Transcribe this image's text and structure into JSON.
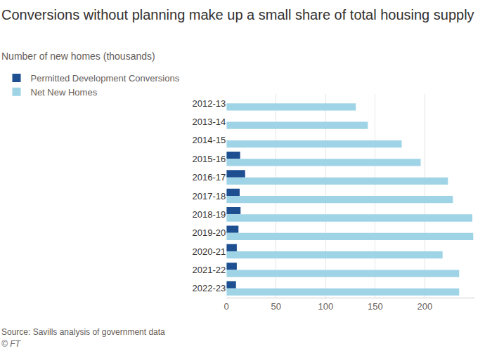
{
  "chart_data": {
    "type": "bar",
    "orientation": "horizontal",
    "title": "Conversions without planning make up a small share of total housing supply",
    "subtitle": "Number of new homes (thousands)",
    "source": "Source: Savills analysis of government data",
    "credit": "© FT",
    "categories": [
      "2012-13",
      "2013-14",
      "2014-15",
      "2015-16",
      "2016-17",
      "2017-18",
      "2018-19",
      "2019-20",
      "2020-21",
      "2021-22",
      "2022-23"
    ],
    "series": [
      {
        "name": "Permitted Development Conversions",
        "color": "#1d4f91",
        "values": [
          null,
          null,
          null,
          13.8,
          18.8,
          13.3,
          14.2,
          12.1,
          10.4,
          10.4,
          9.6
        ]
      },
      {
        "name": "Net New Homes",
        "color": "#9fd4e6",
        "values": [
          130.4,
          142.5,
          176.7,
          195.8,
          223.3,
          228.3,
          247.9,
          248.8,
          217.9,
          234.6,
          234.6
        ]
      }
    ],
    "xlim": [
      0,
      250
    ],
    "xticks": [
      0,
      50,
      100,
      150,
      200
    ],
    "grid": true,
    "legend": "top-left"
  }
}
